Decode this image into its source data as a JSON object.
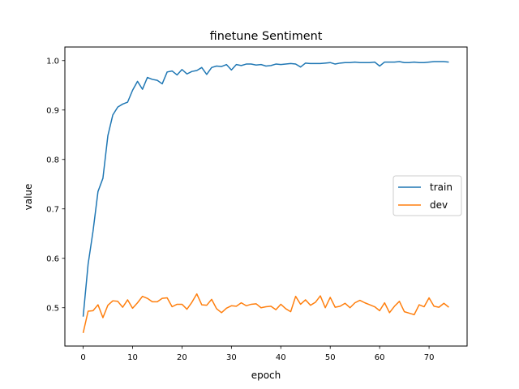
{
  "chart_data": {
    "type": "line",
    "title": "finetune Sentiment",
    "xlabel": "epoch",
    "ylabel": "value",
    "xlim": [
      -3.7,
      77.7
    ],
    "ylim": [
      0.4225,
      1.0275
    ],
    "xticks": [
      0,
      10,
      20,
      30,
      40,
      50,
      60,
      70
    ],
    "yticks": [
      0.5,
      0.6,
      0.7,
      0.8,
      0.9,
      1.0
    ],
    "ytick_labels": [
      "0.5",
      "0.6",
      "0.7",
      "0.8",
      "0.9",
      "1.0"
    ],
    "grid": false,
    "legend_position": "center-right",
    "x": [
      0,
      1,
      2,
      3,
      4,
      5,
      6,
      7,
      8,
      9,
      10,
      11,
      12,
      13,
      14,
      15,
      16,
      17,
      18,
      19,
      20,
      21,
      22,
      23,
      24,
      25,
      26,
      27,
      28,
      29,
      30,
      31,
      32,
      33,
      34,
      35,
      36,
      37,
      38,
      39,
      40,
      41,
      42,
      43,
      44,
      45,
      46,
      47,
      48,
      49,
      50,
      51,
      52,
      53,
      54,
      55,
      56,
      57,
      58,
      59,
      60,
      61,
      62,
      63,
      64,
      65,
      66,
      67,
      68,
      69,
      70,
      71,
      72,
      73,
      74
    ],
    "series": [
      {
        "name": "train",
        "color": "#1f77b4",
        "values": [
          0.482,
          0.588,
          0.655,
          0.735,
          0.762,
          0.848,
          0.89,
          0.906,
          0.912,
          0.916,
          0.94,
          0.958,
          0.942,
          0.966,
          0.962,
          0.96,
          0.953,
          0.977,
          0.979,
          0.971,
          0.982,
          0.973,
          0.978,
          0.98,
          0.986,
          0.972,
          0.986,
          0.989,
          0.988,
          0.992,
          0.981,
          0.992,
          0.99,
          0.993,
          0.993,
          0.991,
          0.992,
          0.989,
          0.99,
          0.993,
          0.992,
          0.993,
          0.994,
          0.993,
          0.987,
          0.995,
          0.994,
          0.994,
          0.994,
          0.995,
          0.996,
          0.993,
          0.995,
          0.996,
          0.996,
          0.997,
          0.996,
          0.996,
          0.996,
          0.997,
          0.989,
          0.997,
          0.997,
          0.997,
          0.998,
          0.996,
          0.996,
          0.997,
          0.996,
          0.996,
          0.997,
          0.998,
          0.998,
          0.998,
          0.997
        ]
      },
      {
        "name": "dev",
        "color": "#ff7f0e",
        "values": [
          0.449,
          0.493,
          0.494,
          0.506,
          0.48,
          0.505,
          0.514,
          0.513,
          0.501,
          0.516,
          0.499,
          0.51,
          0.523,
          0.519,
          0.512,
          0.512,
          0.519,
          0.52,
          0.502,
          0.507,
          0.507,
          0.497,
          0.511,
          0.528,
          0.506,
          0.505,
          0.517,
          0.498,
          0.49,
          0.499,
          0.504,
          0.503,
          0.51,
          0.504,
          0.507,
          0.508,
          0.5,
          0.502,
          0.503,
          0.496,
          0.507,
          0.498,
          0.492,
          0.523,
          0.507,
          0.516,
          0.505,
          0.511,
          0.524,
          0.5,
          0.521,
          0.501,
          0.503,
          0.509,
          0.5,
          0.51,
          0.515,
          0.51,
          0.506,
          0.502,
          0.494,
          0.51,
          0.49,
          0.503,
          0.513,
          0.492,
          0.489,
          0.486,
          0.506,
          0.502,
          0.52,
          0.503,
          0.501,
          0.509,
          0.501
        ]
      }
    ]
  }
}
